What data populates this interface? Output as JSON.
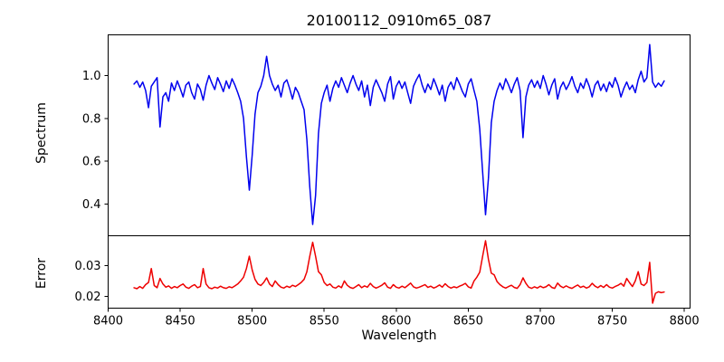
{
  "title": "20100112_0910m65_087",
  "chart_data": {
    "type": "line",
    "title": "20100112_0910m65_087",
    "xlabel": "Wavelength",
    "xlim": [
      8400,
      8804
    ],
    "xticks": [
      8400,
      8450,
      8500,
      8550,
      8600,
      8650,
      8700,
      8750,
      8800
    ],
    "grid": false,
    "legend": false,
    "x": [
      8418,
      8420,
      8422,
      8424,
      8426,
      8428,
      8430,
      8432,
      8434,
      8436,
      8438,
      8440,
      8442,
      8444,
      8446,
      8448,
      8450,
      8452,
      8454,
      8456,
      8458,
      8460,
      8462,
      8464,
      8466,
      8468,
      8470,
      8472,
      8474,
      8476,
      8478,
      8480,
      8482,
      8484,
      8486,
      8488,
      8490,
      8492,
      8494,
      8496,
      8498,
      8500,
      8502,
      8504,
      8506,
      8508,
      8510,
      8512,
      8514,
      8516,
      8518,
      8520,
      8522,
      8524,
      8526,
      8528,
      8530,
      8532,
      8534,
      8536,
      8538,
      8540,
      8542,
      8544,
      8546,
      8548,
      8550,
      8552,
      8554,
      8556,
      8558,
      8560,
      8562,
      8564,
      8566,
      8568,
      8570,
      8572,
      8574,
      8576,
      8578,
      8580,
      8582,
      8584,
      8586,
      8588,
      8590,
      8592,
      8594,
      8596,
      8598,
      8600,
      8602,
      8604,
      8606,
      8608,
      8610,
      8612,
      8614,
      8616,
      8618,
      8620,
      8622,
      8624,
      8626,
      8628,
      8630,
      8632,
      8634,
      8636,
      8638,
      8640,
      8642,
      8644,
      8646,
      8648,
      8650,
      8652,
      8654,
      8656,
      8658,
      8660,
      8662,
      8664,
      8666,
      8668,
      8670,
      8672,
      8674,
      8676,
      8678,
      8680,
      8682,
      8684,
      8686,
      8688,
      8690,
      8692,
      8694,
      8696,
      8698,
      8700,
      8702,
      8704,
      8706,
      8708,
      8710,
      8712,
      8714,
      8716,
      8718,
      8720,
      8722,
      8724,
      8726,
      8728,
      8730,
      8732,
      8734,
      8736,
      8738,
      8740,
      8742,
      8744,
      8746,
      8748,
      8750,
      8752,
      8754,
      8756,
      8758,
      8760,
      8762,
      8764,
      8766,
      8768,
      8770,
      8772,
      8774,
      8776,
      8778,
      8780,
      8782,
      8784,
      8786
    ],
    "panels": [
      {
        "name": "Spectrum",
        "ylabel": "Spectrum",
        "color": "#0000ee",
        "ylim": [
          0.252,
          1.19
        ],
        "yticks": [
          "0.4",
          "0.6",
          "0.8",
          "1.0"
        ],
        "values": [
          0.96,
          0.975,
          0.945,
          0.97,
          0.93,
          0.85,
          0.95,
          0.97,
          0.99,
          0.76,
          0.9,
          0.92,
          0.88,
          0.965,
          0.93,
          0.975,
          0.94,
          0.9,
          0.955,
          0.97,
          0.92,
          0.89,
          0.96,
          0.935,
          0.885,
          0.955,
          1.0,
          0.965,
          0.935,
          0.99,
          0.96,
          0.925,
          0.975,
          0.94,
          0.985,
          0.955,
          0.92,
          0.88,
          0.8,
          0.62,
          0.465,
          0.63,
          0.82,
          0.92,
          0.95,
          1.0,
          1.09,
          1.0,
          0.96,
          0.93,
          0.955,
          0.9,
          0.965,
          0.98,
          0.94,
          0.89,
          0.945,
          0.92,
          0.88,
          0.84,
          0.7,
          0.48,
          0.305,
          0.44,
          0.73,
          0.87,
          0.92,
          0.955,
          0.88,
          0.94,
          0.975,
          0.945,
          0.99,
          0.955,
          0.92,
          0.965,
          1.0,
          0.96,
          0.93,
          0.975,
          0.9,
          0.955,
          0.86,
          0.945,
          0.98,
          0.95,
          0.92,
          0.88,
          0.96,
          0.995,
          0.89,
          0.95,
          0.975,
          0.94,
          0.97,
          0.92,
          0.87,
          0.95,
          0.98,
          1.005,
          0.955,
          0.92,
          0.96,
          0.935,
          0.985,
          0.95,
          0.91,
          0.955,
          0.88,
          0.945,
          0.97,
          0.935,
          0.99,
          0.96,
          0.925,
          0.9,
          0.96,
          0.985,
          0.93,
          0.88,
          0.75,
          0.55,
          0.35,
          0.52,
          0.78,
          0.88,
          0.93,
          0.965,
          0.935,
          0.985,
          0.955,
          0.92,
          0.96,
          0.99,
          0.93,
          0.71,
          0.9,
          0.955,
          0.98,
          0.945,
          0.975,
          0.94,
          1.0,
          0.96,
          0.91,
          0.955,
          0.985,
          0.89,
          0.945,
          0.97,
          0.935,
          0.96,
          0.995,
          0.95,
          0.92,
          0.965,
          0.94,
          0.985,
          0.95,
          0.9,
          0.955,
          0.975,
          0.93,
          0.96,
          0.925,
          0.97,
          0.945,
          0.99,
          0.955,
          0.9,
          0.94,
          0.97,
          0.935,
          0.955,
          0.92,
          0.98,
          1.02,
          0.97,
          0.99,
          1.145,
          0.97,
          0.945,
          0.965,
          0.95,
          0.975
        ]
      },
      {
        "name": "Error",
        "ylabel": "Error",
        "color": "#ee0000",
        "ylim": [
          0.0162,
          0.0396
        ],
        "yticks": [
          "0.02",
          "0.03"
        ],
        "values": [
          0.0228,
          0.0225,
          0.0232,
          0.0226,
          0.0238,
          0.0245,
          0.029,
          0.0235,
          0.0228,
          0.0258,
          0.024,
          0.023,
          0.0234,
          0.0226,
          0.0232,
          0.0228,
          0.0235,
          0.024,
          0.023,
          0.0226,
          0.0233,
          0.0238,
          0.0228,
          0.0232,
          0.029,
          0.024,
          0.0228,
          0.0225,
          0.023,
          0.0227,
          0.0233,
          0.0228,
          0.0226,
          0.0231,
          0.0228,
          0.0234,
          0.024,
          0.025,
          0.0262,
          0.029,
          0.033,
          0.0285,
          0.0255,
          0.024,
          0.0235,
          0.0245,
          0.026,
          0.024,
          0.0232,
          0.025,
          0.0238,
          0.023,
          0.0227,
          0.0233,
          0.0229,
          0.0236,
          0.0232,
          0.0238,
          0.0245,
          0.0255,
          0.028,
          0.033,
          0.0375,
          0.033,
          0.028,
          0.027,
          0.0245,
          0.0235,
          0.024,
          0.023,
          0.0227,
          0.0234,
          0.0228,
          0.025,
          0.0236,
          0.0229,
          0.0226,
          0.0232,
          0.0238,
          0.0228,
          0.0234,
          0.023,
          0.0242,
          0.0232,
          0.0227,
          0.0231,
          0.0236,
          0.0244,
          0.023,
          0.0226,
          0.0238,
          0.023,
          0.0227,
          0.0233,
          0.0228,
          0.0235,
          0.0243,
          0.0231,
          0.0227,
          0.023,
          0.0234,
          0.0238,
          0.0229,
          0.0233,
          0.0227,
          0.0231,
          0.0237,
          0.023,
          0.0241,
          0.0232,
          0.0227,
          0.0231,
          0.0228,
          0.0233,
          0.0237,
          0.0242,
          0.0231,
          0.0227,
          0.025,
          0.0262,
          0.0278,
          0.033,
          0.038,
          0.032,
          0.0275,
          0.027,
          0.0248,
          0.0238,
          0.0231,
          0.0227,
          0.0232,
          0.0236,
          0.0229,
          0.0226,
          0.0238,
          0.026,
          0.0242,
          0.023,
          0.0226,
          0.0231,
          0.0227,
          0.0233,
          0.0228,
          0.0231,
          0.0238,
          0.0229,
          0.0226,
          0.0243,
          0.0233,
          0.0228,
          0.0234,
          0.0229,
          0.0226,
          0.0232,
          0.0237,
          0.0229,
          0.0233,
          0.0227,
          0.0231,
          0.0242,
          0.0233,
          0.0228,
          0.0235,
          0.0229,
          0.0238,
          0.023,
          0.0227,
          0.0232,
          0.0236,
          0.0242,
          0.0233,
          0.0258,
          0.0244,
          0.0232,
          0.025,
          0.028,
          0.024,
          0.0235,
          0.0245,
          0.031,
          0.0178,
          0.021,
          0.0215,
          0.0212,
          0.0214
        ]
      }
    ]
  }
}
